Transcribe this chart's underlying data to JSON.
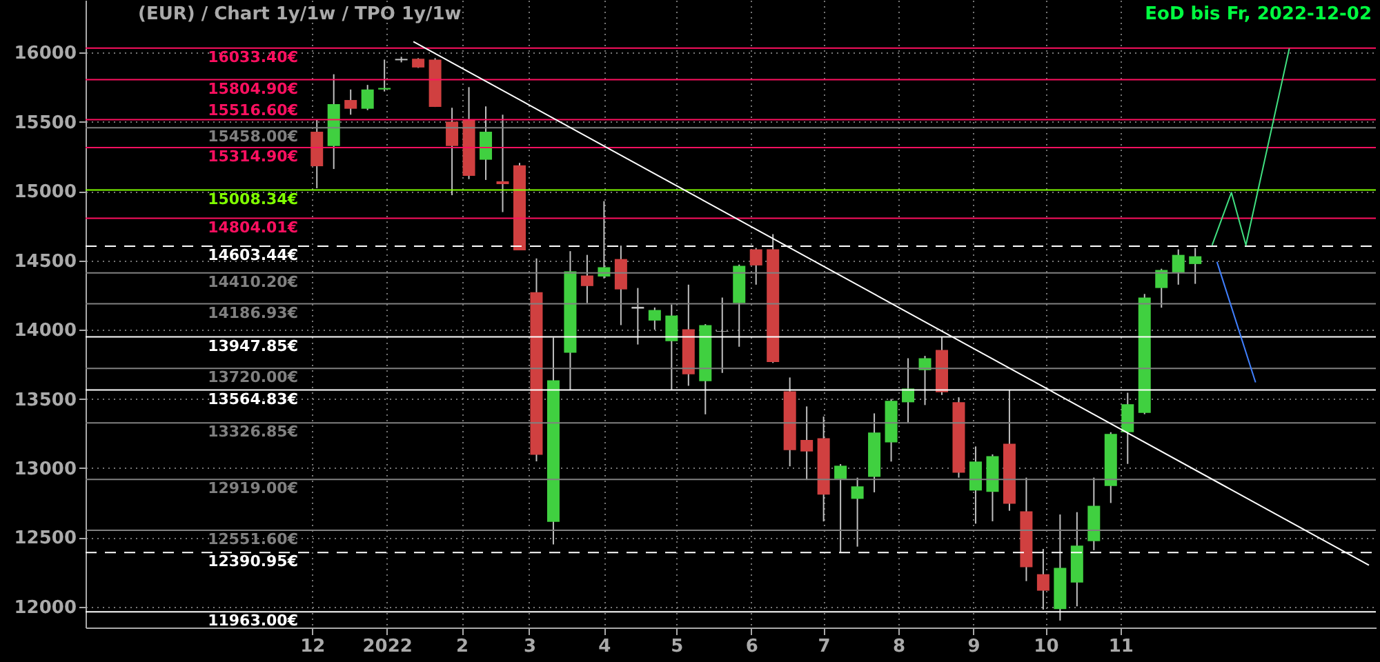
{
  "chart_data": {
    "type": "candlestick",
    "title": "(EUR) /  Chart 1y/1w / TPO 1y/1w",
    "annotations": [
      "EoD bis Fr, 2022-12-02"
    ],
    "x": [
      "2021-12-03",
      "2021-12-10",
      "2021-12-17",
      "2021-12-24",
      "2021-12-31",
      "2022-01-07",
      "2022-01-14",
      "2022-01-21",
      "2022-01-28",
      "2022-02-04",
      "2022-02-11",
      "2022-02-18",
      "2022-02-25",
      "2022-03-04",
      "2022-03-11",
      "2022-03-18",
      "2022-03-25",
      "2022-04-01",
      "2022-04-08",
      "2022-04-15",
      "2022-04-22",
      "2022-04-29",
      "2022-05-06",
      "2022-05-13",
      "2022-05-20",
      "2022-05-27",
      "2022-06-03",
      "2022-06-10",
      "2022-06-17",
      "2022-06-24",
      "2022-07-01",
      "2022-07-08",
      "2022-07-15",
      "2022-07-22",
      "2022-07-29",
      "2022-08-05",
      "2022-08-12",
      "2022-08-19",
      "2022-08-26",
      "2022-09-02",
      "2022-09-09",
      "2022-09-16",
      "2022-09-23",
      "2022-09-30",
      "2022-10-07",
      "2022-10-14",
      "2022-10-21",
      "2022-10-28",
      "2022-11-04",
      "2022-11-11",
      "2022-11-18",
      "2022-11-25",
      "2022-12-02"
    ],
    "ohlc": [
      [
        15429,
        15519,
        15021,
        15180
      ],
      [
        15326,
        15844,
        15160,
        15628
      ],
      [
        15658,
        15734,
        15552,
        15595
      ],
      [
        15595,
        15767,
        15585,
        15734
      ],
      [
        15734,
        15950,
        15720,
        15745
      ],
      [
        15945,
        15970,
        15930,
        15955
      ],
      [
        15956,
        15960,
        15890,
        15893
      ],
      [
        15950,
        15960,
        15608,
        15608
      ],
      [
        15502,
        15602,
        14971,
        15326
      ],
      [
        15519,
        15751,
        15087,
        15111
      ],
      [
        15227,
        15612,
        15081,
        15429
      ],
      [
        15071,
        15552,
        14849,
        15051
      ],
      [
        15187,
        15204,
        14573,
        14573
      ],
      [
        14271,
        14514,
        13050,
        13097
      ],
      [
        12613,
        13943,
        12450,
        13635
      ],
      [
        13834,
        14567,
        13562,
        14421
      ],
      [
        14391,
        14540,
        14192,
        14315
      ],
      [
        14384,
        14928,
        14370,
        14451
      ],
      [
        14510,
        14607,
        14033,
        14291
      ],
      [
        14165,
        14301,
        13893,
        14152
      ],
      [
        14066,
        14160,
        14000,
        14142
      ],
      [
        13917,
        14182,
        13568,
        14102
      ],
      [
        14003,
        14325,
        13595,
        13678
      ],
      [
        13628,
        14040,
        13389,
        14033
      ],
      [
        13986,
        14232,
        13688,
        13990
      ],
      [
        14192,
        14470,
        13877,
        14461
      ],
      [
        14580,
        14590,
        14325,
        14464
      ],
      [
        14580,
        14690,
        13760,
        13767
      ],
      [
        13555,
        13655,
        13014,
        13131
      ],
      [
        13204,
        13446,
        12915,
        13121
      ],
      [
        13217,
        13373,
        12616,
        12809
      ],
      [
        12922,
        13030,
        12394,
        13018
      ],
      [
        12779,
        12932,
        12434,
        12869
      ],
      [
        12938,
        13396,
        12826,
        13257
      ],
      [
        13187,
        13500,
        13048,
        13486
      ],
      [
        13476,
        13794,
        13330,
        13575
      ],
      [
        13708,
        13811,
        13456,
        13794
      ],
      [
        13854,
        13950,
        13529,
        13549
      ],
      [
        13476,
        13512,
        12932,
        12968
      ],
      [
        12839,
        13157,
        12600,
        13048
      ],
      [
        12829,
        13100,
        12617,
        13087
      ],
      [
        13177,
        13568,
        12693,
        12743
      ],
      [
        12689,
        12932,
        12185,
        12285
      ],
      [
        12235,
        12417,
        11980,
        12116
      ],
      [
        11983,
        12666,
        11900,
        12281
      ],
      [
        12175,
        12683,
        12003,
        12441
      ],
      [
        12474,
        12932,
        12408,
        12729
      ],
      [
        12872,
        13260,
        12749,
        13247
      ],
      [
        13260,
        13545,
        13031,
        13462
      ],
      [
        13399,
        14258,
        13390,
        14232
      ],
      [
        14301,
        14440,
        14159,
        14431
      ],
      [
        14414,
        14580,
        14325,
        14540
      ],
      [
        14474,
        14590,
        14331,
        14530
      ]
    ],
    "colors": [
      "#d04040",
      "#40d040",
      "#d04040",
      "#40d040",
      "#40d040",
      "#c0c0c0",
      "#d04040",
      "#d04040",
      "#d04040",
      "#d04040",
      "#40d040",
      "#d04040",
      "#d04040",
      "#d04040",
      "#40d040",
      "#40d040",
      "#d04040",
      "#40d040",
      "#d04040",
      "#c0c0c0",
      "#40d040",
      "#40d040",
      "#d04040",
      "#40d040",
      "#c0c0c0",
      "#40d040",
      "#d04040",
      "#d04040",
      "#d04040",
      "#d04040",
      "#d04040",
      "#40d040",
      "#40d040",
      "#40d040",
      "#40d040",
      "#40d040",
      "#40d040",
      "#d04040",
      "#d04040",
      "#40d040",
      "#40d040",
      "#d04040",
      "#d04040",
      "#d04040",
      "#40d040",
      "#40d040",
      "#40d040",
      "#40d040",
      "#40d040",
      "#40d040",
      "#40d040",
      "#40d040",
      "#40d040"
    ],
    "series": [
      {
        "type": "line",
        "color": "#ffffff",
        "x": [
          "2022-01-12",
          "2023-02-12"
        ],
        "values": [
          16080,
          12300
        ]
      },
      {
        "type": "line",
        "color": "#40e080",
        "x": [
          "2022-12-09",
          "2022-12-17",
          "2022-12-23",
          "2023-01-10"
        ],
        "values": [
          14610,
          14990,
          14610,
          16030
        ]
      },
      {
        "type": "line",
        "color": "#4080ff",
        "x": [
          "2022-12-11",
          "2022-12-27"
        ],
        "values": [
          14490,
          13620
        ]
      }
    ],
    "ref_lines": [
      {
        "axis": "y",
        "value": 16033.4,
        "label": "16033.40€",
        "color": "#ff1060"
      },
      {
        "axis": "y",
        "value": 15804.9,
        "label": "15804.90€",
        "color": "#ff1060"
      },
      {
        "axis": "y",
        "value": 15516.6,
        "label": "15516.60€",
        "color": "#ff1060"
      },
      {
        "axis": "y",
        "value": 15458.0,
        "label": "15458.00€",
        "color": "#808080"
      },
      {
        "axis": "y",
        "value": 15314.9,
        "label": "15314.90€",
        "color": "#ff1060"
      },
      {
        "axis": "y",
        "value": 15008.34,
        "label": "15008.34€",
        "color": "#80ff00"
      },
      {
        "axis": "y",
        "value": 14804.01,
        "label": "14804.01€",
        "color": "#ff1060"
      },
      {
        "axis": "y",
        "value": 14603.44,
        "label": "14603.44€",
        "color": "#ffffff",
        "line_style": "dashed"
      },
      {
        "axis": "y",
        "value": 14410.2,
        "label": "14410.20€",
        "color": "#808080"
      },
      {
        "axis": "y",
        "value": 14186.93,
        "label": "14186.93€",
        "color": "#808080"
      },
      {
        "axis": "y",
        "value": 13947.85,
        "label": "13947.85€",
        "color": "#ffffff"
      },
      {
        "axis": "y",
        "value": 13720.0,
        "label": "13720.00€",
        "color": "#808080"
      },
      {
        "axis": "y",
        "value": 13564.83,
        "label": "13564.83€",
        "color": "#ffffff"
      },
      {
        "axis": "y",
        "value": 13326.85,
        "label": "13326.85€",
        "color": "#808080"
      },
      {
        "axis": "y",
        "value": 12919.0,
        "label": "12919.00€",
        "color": "#808080"
      },
      {
        "axis": "y",
        "value": 12551.6,
        "label": "12551.60€",
        "color": "#808080"
      },
      {
        "axis": "y",
        "value": 12390.95,
        "label": "12390.95€",
        "color": "#ffffff",
        "line_style": "dashed"
      },
      {
        "axis": "y",
        "value": 11963.0,
        "label": "11963.00€",
        "color": "#ffffff"
      }
    ],
    "xlim": [
      "2021-09-01",
      "2023-02-12"
    ],
    "xticks": [
      {
        "value": "2021-12-01",
        "label": "12"
      },
      {
        "value": "2022-01-01",
        "label": "2022"
      },
      {
        "value": "2022-02-01",
        "label": "2"
      },
      {
        "value": "2022-03-01",
        "label": "3"
      },
      {
        "value": "2022-04-01",
        "label": "4"
      },
      {
        "value": "2022-05-01",
        "label": "5"
      },
      {
        "value": "2022-06-01",
        "label": "6"
      },
      {
        "value": "2022-07-01",
        "label": "7"
      },
      {
        "value": "2022-08-01",
        "label": "8"
      },
      {
        "value": "2022-09-01",
        "label": "9"
      },
      {
        "value": "2022-10-01",
        "label": "10"
      },
      {
        "value": "2022-11-01",
        "label": "11"
      }
    ],
    "ylim": [
      11850,
      16380
    ],
    "yticks": [
      12000,
      12500,
      13000,
      13500,
      14000,
      14500,
      15000,
      15500,
      16000
    ],
    "grid": true
  }
}
